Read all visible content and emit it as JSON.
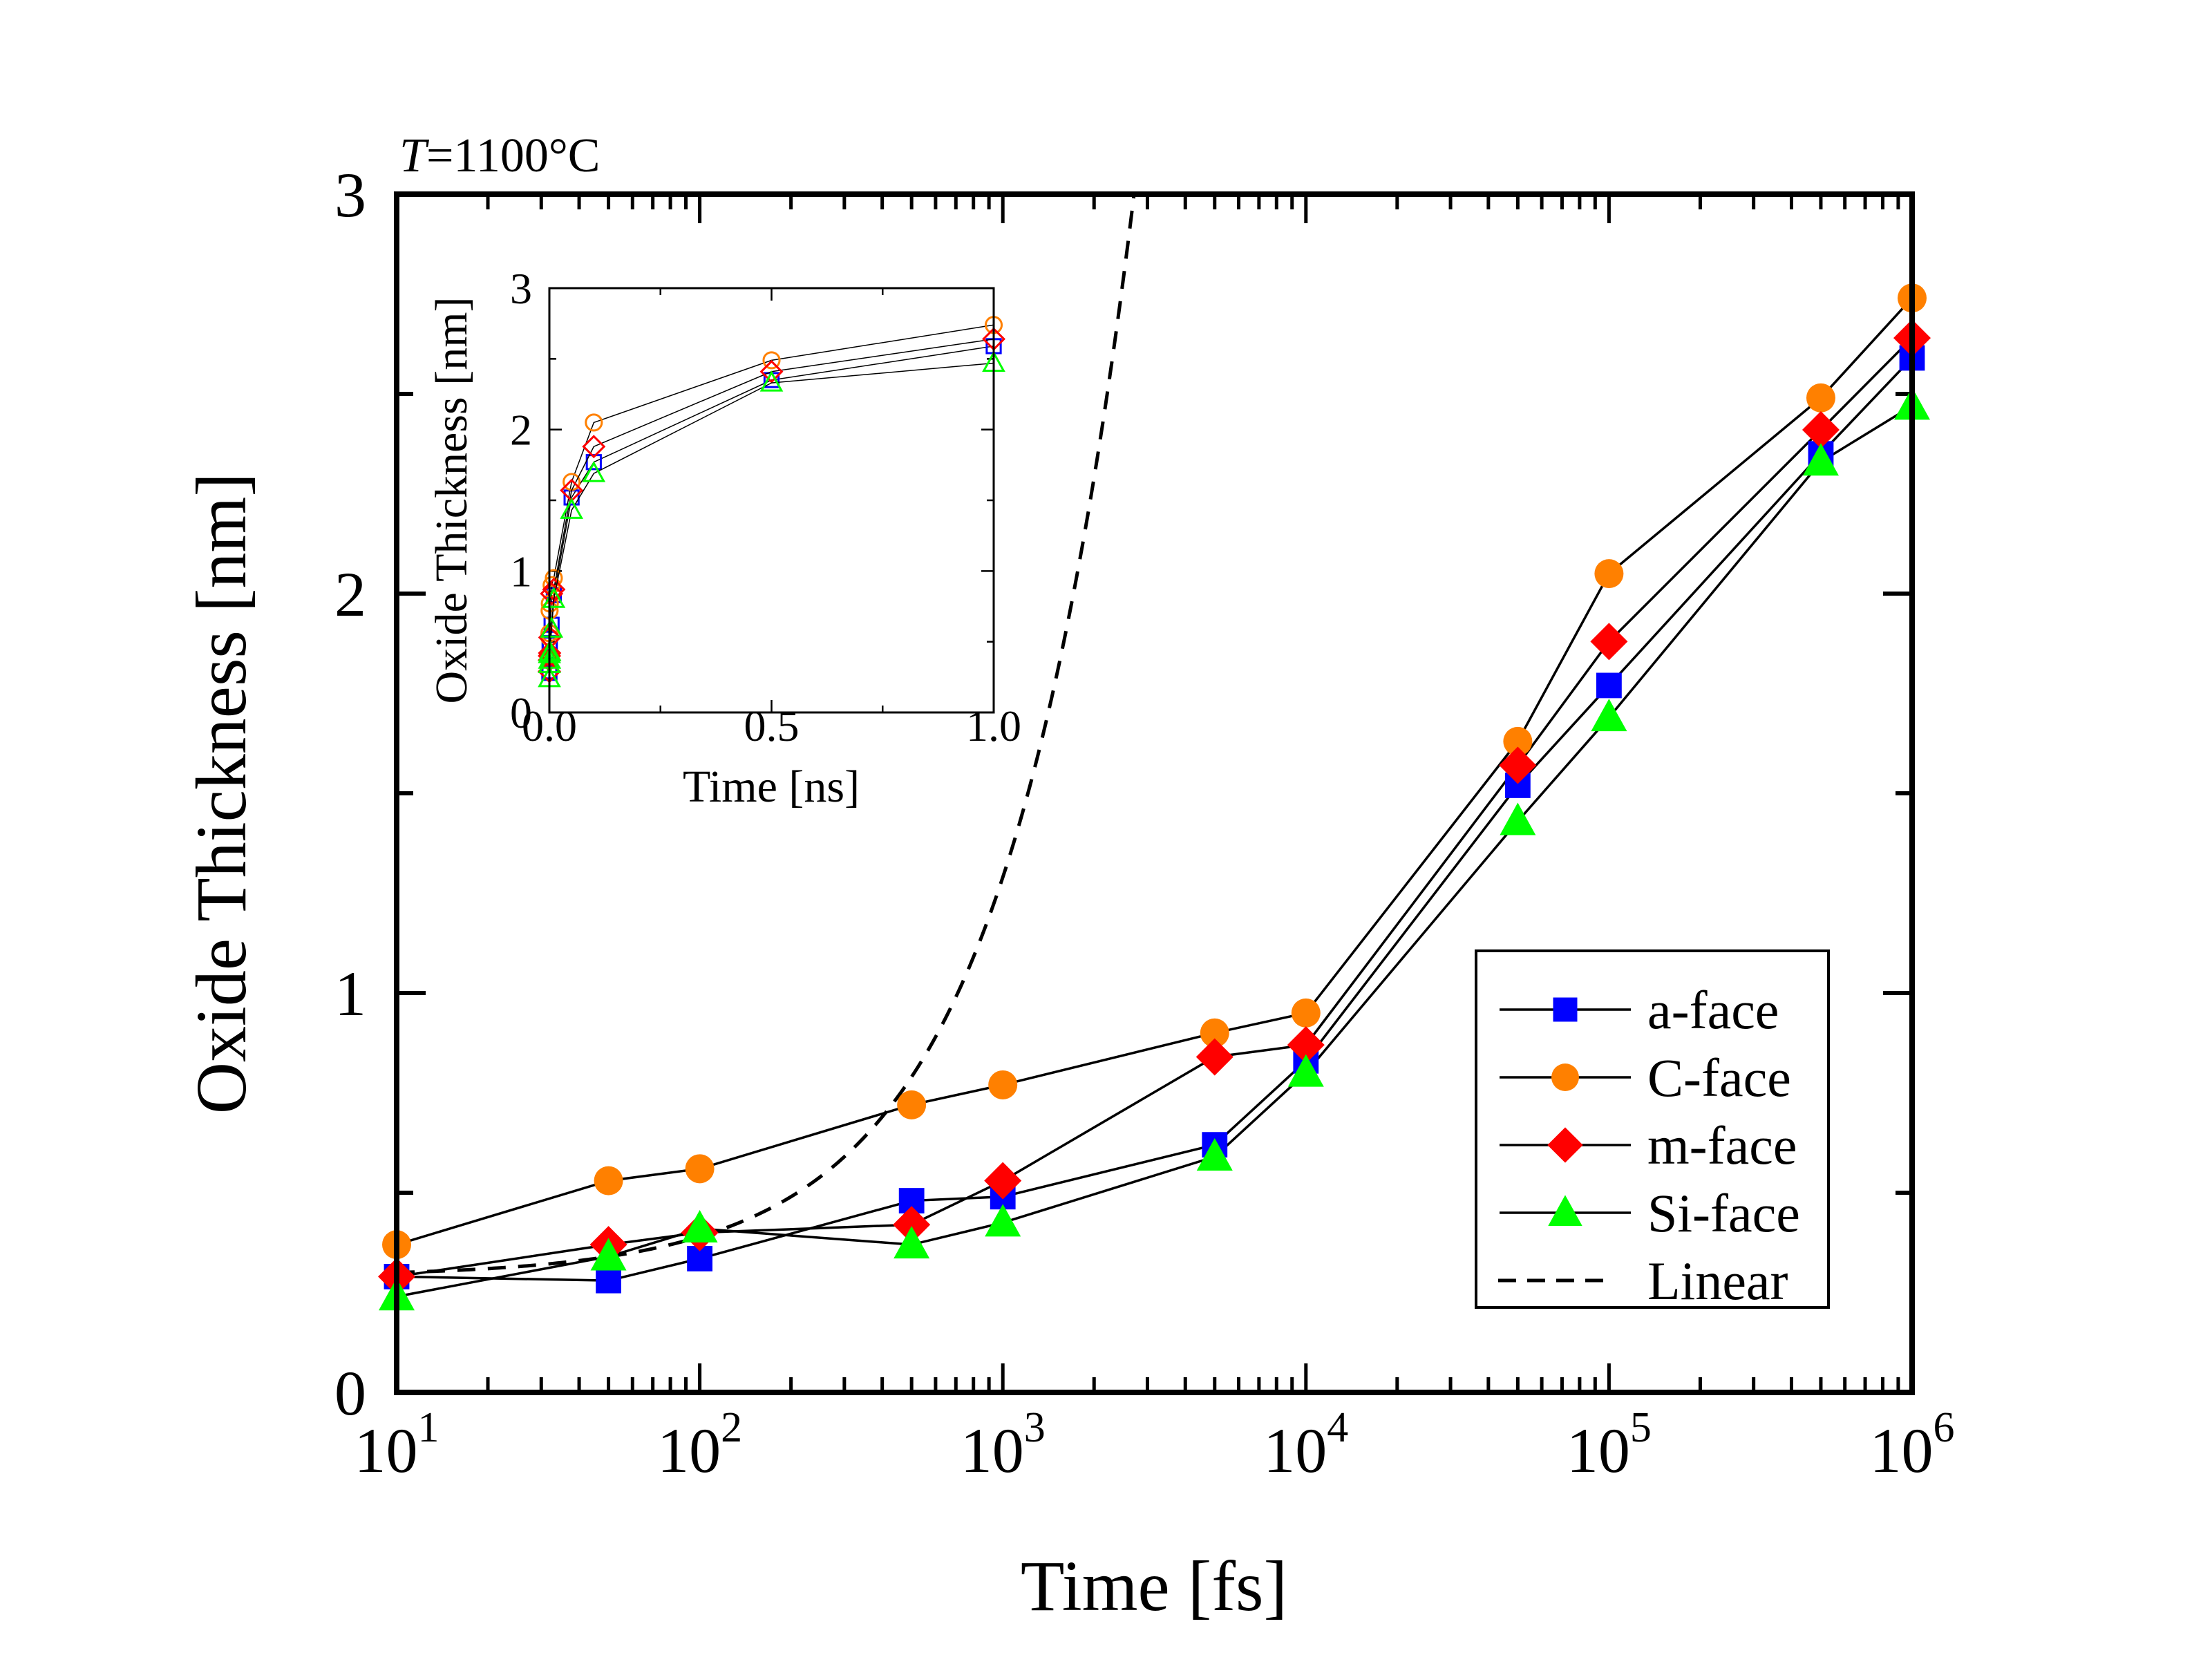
{
  "chart_data": {
    "type": "line",
    "title": "",
    "annotation": {
      "italic": "T",
      "rest": "=1100°C"
    },
    "xlabel": "Time [fs]",
    "ylabel": "Oxide Thickness [nm]",
    "xscale": "log",
    "xlim": [
      10,
      1000000
    ],
    "ylim": [
      0,
      3
    ],
    "xticks": [
      {
        "base": "10",
        "exp": "1"
      },
      {
        "base": "10",
        "exp": "2"
      },
      {
        "base": "10",
        "exp": "3"
      },
      {
        "base": "10",
        "exp": "4"
      },
      {
        "base": "10",
        "exp": "5"
      },
      {
        "base": "10",
        "exp": "6"
      }
    ],
    "yticks": [
      "0",
      "1",
      "2",
      "3"
    ],
    "x": [
      10,
      50,
      100,
      500,
      1000,
      5000,
      10000,
      50000,
      100000,
      500000,
      1000000
    ],
    "series": [
      {
        "name": "a-face",
        "marker": "square",
        "color": "#0000ff",
        "values": [
          0.29,
          0.28,
          0.335,
          0.48,
          0.49,
          0.62,
          0.83,
          1.52,
          1.77,
          2.35,
          2.59
        ]
      },
      {
        "name": "C-face",
        "marker": "circle",
        "color": "#ff8000",
        "values": [
          0.37,
          0.53,
          0.56,
          0.72,
          0.77,
          0.9,
          0.95,
          1.63,
          2.05,
          2.49,
          2.74
        ]
      },
      {
        "name": "m-face",
        "marker": "diamond",
        "color": "#ff0000",
        "values": [
          0.29,
          0.37,
          0.4,
          0.42,
          0.53,
          0.84,
          0.87,
          1.57,
          1.88,
          2.41,
          2.64
        ]
      },
      {
        "name": "Si-face",
        "marker": "triangle",
        "color": "#00ff00",
        "values": [
          0.24,
          0.34,
          0.41,
          0.37,
          0.425,
          0.59,
          0.8,
          1.43,
          1.69,
          2.33,
          2.47
        ]
      }
    ],
    "linear_fit": {
      "name": "Linear",
      "style": "dashed",
      "intercept": 0.29,
      "slope_per_fs": 0.001
    },
    "legend": {
      "position": "bottom-right",
      "entries": [
        "a-face",
        "C-face",
        "m-face",
        "Si-face",
        "Linear"
      ]
    },
    "inset": {
      "type": "line",
      "xlabel": "Time [ns]",
      "ylabel": "Oxide Thickness [nm]",
      "xscale": "linear",
      "xlim": [
        0,
        1.0
      ],
      "ylim": [
        0,
        3
      ],
      "xticks": [
        "0.0",
        "0.5",
        "1.0"
      ],
      "yticks": [
        "0",
        "1",
        "2",
        "3"
      ],
      "marker_fill": "hollow",
      "x_ns": [
        1e-05,
        5e-05,
        0.0001,
        0.0005,
        0.001,
        0.005,
        0.01,
        0.05,
        0.1,
        0.5,
        1.0
      ]
    }
  }
}
